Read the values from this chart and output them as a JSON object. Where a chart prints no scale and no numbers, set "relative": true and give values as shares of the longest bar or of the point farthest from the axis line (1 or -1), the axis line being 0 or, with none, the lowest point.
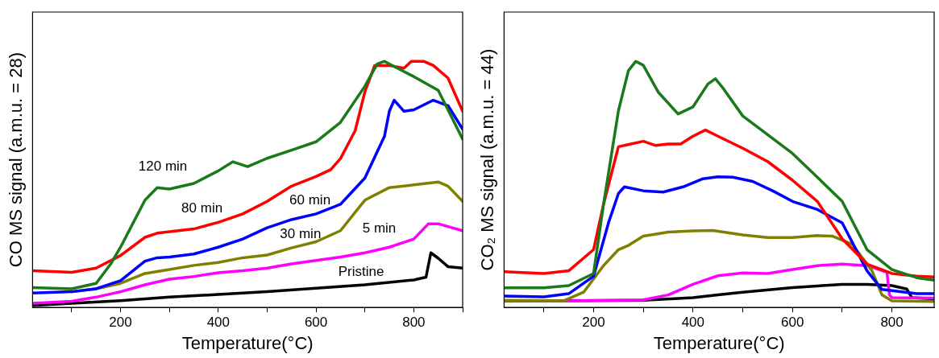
{
  "chart_data": [
    {
      "type": "line",
      "xlabel": "Temperature(°C)",
      "ylabel": "CO MS signal (a.m.u. = 28)",
      "relative": true,
      "xlim": [
        20,
        900
      ],
      "xticks": [
        {
          "value": 100,
          "label": null
        },
        200,
        {
          "value": 300,
          "label": null
        },
        400,
        {
          "value": 500,
          "label": null
        },
        600,
        {
          "value": 700,
          "label": null
        },
        800,
        {
          "value": 900,
          "label": null
        }
      ],
      "grid": false,
      "legend": false,
      "marker": "none",
      "line_style": "solid",
      "series": [
        {
          "name": "120 min",
          "color": "#1a7a1a",
          "x": [
            20,
            100,
            150,
            180,
            200,
            250,
            275,
            300,
            350,
            400,
            430,
            460,
            500,
            550,
            600,
            650,
            700,
            725,
            740,
            750,
            800,
            850,
            900
          ],
          "values": [
            0.081,
            0.076,
            0.098,
            0.177,
            0.245,
            0.436,
            0.487,
            0.481,
            0.504,
            0.555,
            0.592,
            0.572,
            0.606,
            0.639,
            0.673,
            0.752,
            0.899,
            0.989,
            1.0,
            0.989,
            0.938,
            0.882,
            0.684
          ]
        },
        {
          "name": "80 min",
          "color": "#ff0000",
          "x": [
            20,
            100,
            150,
            200,
            250,
            275,
            300,
            350,
            400,
            450,
            500,
            550,
            600,
            630,
            650,
            680,
            700,
            720,
            750,
            780,
            795,
            820,
            840,
            870,
            900
          ],
          "values": [
            0.149,
            0.143,
            0.16,
            0.211,
            0.285,
            0.302,
            0.308,
            0.319,
            0.346,
            0.38,
            0.431,
            0.493,
            0.532,
            0.56,
            0.605,
            0.718,
            0.876,
            0.983,
            0.983,
            0.972,
            1.0,
            1.0,
            0.983,
            0.932,
            0.797
          ]
        },
        {
          "name": "60 min",
          "color": "#0000ff",
          "x": [
            20,
            100,
            150,
            200,
            250,
            275,
            300,
            350,
            400,
            450,
            500,
            550,
            600,
            650,
            700,
            740,
            750,
            760,
            780,
            800,
            840,
            870,
            900
          ],
          "values": [
            0.059,
            0.064,
            0.076,
            0.109,
            0.188,
            0.202,
            0.205,
            0.217,
            0.245,
            0.278,
            0.324,
            0.357,
            0.38,
            0.419,
            0.526,
            0.695,
            0.797,
            0.842,
            0.797,
            0.803,
            0.842,
            0.82,
            0.724
          ]
        },
        {
          "name": "30 min",
          "color": "#808000",
          "x": [
            100,
            150,
            200,
            250,
            300,
            350,
            400,
            450,
            500,
            550,
            600,
            650,
            700,
            750,
            800,
            850,
            870,
            900
          ],
          "values": [
            0.064,
            0.076,
            0.098,
            0.138,
            0.154,
            0.171,
            0.183,
            0.202,
            0.213,
            0.242,
            0.267,
            0.312,
            0.436,
            0.487,
            0.498,
            0.51,
            0.493,
            0.431
          ]
        },
        {
          "name": "5 min",
          "color": "#ff00ff",
          "x": [
            20,
            100,
            150,
            200,
            250,
            300,
            350,
            400,
            450,
            500,
            550,
            600,
            650,
            700,
            750,
            800,
            830,
            850,
            900
          ],
          "values": [
            0.017,
            0.025,
            0.042,
            0.064,
            0.092,
            0.115,
            0.126,
            0.141,
            0.149,
            0.16,
            0.177,
            0.191,
            0.205,
            0.222,
            0.245,
            0.278,
            0.34,
            0.34,
            0.312
          ]
        },
        {
          "name": "Pristine",
          "color": "#000000",
          "x": [
            20,
            100,
            200,
            300,
            400,
            500,
            600,
            700,
            800,
            825,
            835,
            850,
            870,
            900
          ],
          "values": [
            0.008,
            0.017,
            0.028,
            0.042,
            0.053,
            0.064,
            0.078,
            0.092,
            0.112,
            0.123,
            0.222,
            0.2,
            0.166,
            0.16
          ]
        }
      ]
    },
    {
      "type": "line",
      "xlabel": "Temperature(°C)",
      "ylabel": "CO₂ MS signal (a.m.u. = 44)",
      "relative": true,
      "xlim": [
        20,
        885
      ],
      "xticks": [
        {
          "value": 100,
          "label": null
        },
        200,
        {
          "value": 300,
          "label": null
        },
        400,
        {
          "value": 500,
          "label": null
        },
        600,
        {
          "value": 700,
          "label": null
        },
        800
      ],
      "grid": false,
      "legend": false,
      "marker": "none",
      "line_style": "solid",
      "series": [
        {
          "color": "#1a7a1a",
          "x": [
            20,
            100,
            150,
            200,
            220,
            250,
            270,
            285,
            300,
            330,
            370,
            400,
            430,
            445,
            460,
            500,
            550,
            600,
            650,
            700,
            750,
            800,
            850,
            885
          ],
          "values": [
            0.08,
            0.08,
            0.089,
            0.138,
            0.419,
            0.799,
            0.962,
            1.0,
            0.984,
            0.875,
            0.786,
            0.815,
            0.908,
            0.929,
            0.892,
            0.778,
            0.702,
            0.626,
            0.529,
            0.431,
            0.235,
            0.154,
            0.121,
            0.111
          ]
        },
        {
          "color": "#ff0000",
          "x": [
            20,
            100,
            150,
            200,
            220,
            250,
            275,
            300,
            325,
            350,
            375,
            400,
            425,
            450,
            500,
            550,
            600,
            650,
            700,
            750,
            800,
            850,
            885
          ],
          "values": [
            0.145,
            0.138,
            0.149,
            0.235,
            0.419,
            0.653,
            0.664,
            0.675,
            0.658,
            0.664,
            0.664,
            0.696,
            0.721,
            0.696,
            0.647,
            0.593,
            0.517,
            0.431,
            0.279,
            0.176,
            0.138,
            0.127,
            0.124
          ]
        },
        {
          "color": "#0000ff",
          "x": [
            20,
            100,
            150,
            200,
            230,
            250,
            262,
            300,
            340,
            380,
            420,
            450,
            480,
            520,
            560,
            600,
            650,
            700,
            750,
            780,
            850,
            885
          ],
          "values": [
            0.046,
            0.043,
            0.056,
            0.127,
            0.344,
            0.463,
            0.49,
            0.474,
            0.469,
            0.49,
            0.523,
            0.531,
            0.529,
            0.512,
            0.474,
            0.431,
            0.398,
            0.344,
            0.149,
            0.073,
            0.056,
            0.056
          ]
        },
        {
          "color": "#808000",
          "x": [
            20,
            140,
            180,
            220,
            250,
            270,
            300,
            350,
            400,
            440,
            500,
            550,
            600,
            650,
            680,
            720,
            760,
            780,
            800,
            885
          ],
          "values": [
            0.029,
            0.027,
            0.062,
            0.17,
            0.235,
            0.252,
            0.29,
            0.306,
            0.311,
            0.313,
            0.295,
            0.284,
            0.284,
            0.292,
            0.29,
            0.257,
            0.149,
            0.051,
            0.027,
            0.024
          ]
        },
        {
          "color": "#ff00ff",
          "x": [
            20,
            150,
            300,
            350,
            400,
            450,
            500,
            550,
            600,
            650,
            700,
            750,
            790,
            795,
            800,
            885
          ],
          "values": [
            0.027,
            0.027,
            0.031,
            0.051,
            0.094,
            0.129,
            0.14,
            0.138,
            0.154,
            0.17,
            0.176,
            0.17,
            0.143,
            0.051,
            0.04,
            0.038
          ]
        },
        {
          "color": "#000000",
          "x": [
            20,
            300,
            400,
            450,
            500,
            600,
            700,
            750,
            800,
            830,
            840,
            885
          ],
          "values": [
            0.027,
            0.029,
            0.04,
            0.051,
            0.062,
            0.081,
            0.094,
            0.094,
            0.089,
            0.075,
            0.04,
            0.035
          ]
        }
      ]
    }
  ]
}
